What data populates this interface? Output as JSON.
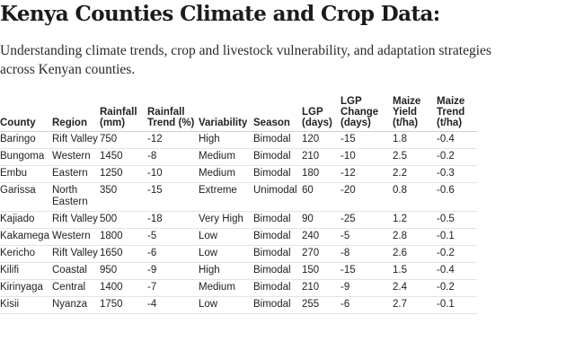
{
  "document": {
    "title": "Kenya Counties Climate and Crop Data:",
    "subtitle": "Understanding climate trends, crop and livestock vulnerability, and adaptation strategies across Kenyan counties."
  },
  "table": {
    "headers": [
      "County",
      "Region",
      "Rainfall (mm)",
      "Rainfall Trend (%)",
      "Variability",
      "Season",
      "LGP (days)",
      "LGP Change (days)",
      "Maize Yield (t/ha)",
      "Maize Trend (t/ha)"
    ],
    "rows": [
      [
        "Baringo",
        "Rift Valley",
        "750",
        "-12",
        "High",
        "Bimodal",
        "120",
        "-15",
        "1.8",
        "-0.4"
      ],
      [
        "Bungoma",
        "Western",
        "1450",
        "-8",
        "Medium",
        "Bimodal",
        "210",
        "-10",
        "2.5",
        "-0.2"
      ],
      [
        "Embu",
        "Eastern",
        "1250",
        "-10",
        "Medium",
        "Bimodal",
        "180",
        "-12",
        "2.2",
        "-0.3"
      ],
      [
        "Garissa",
        "North Eastern",
        "350",
        "-15",
        "Extreme",
        "Unimodal",
        "60",
        "-20",
        "0.8",
        "-0.6"
      ],
      [
        "Kajiado",
        "Rift Valley",
        "500",
        "-18",
        "Very High",
        "Bimodal",
        "90",
        "-25",
        "1.2",
        "-0.5"
      ],
      [
        "Kakamega",
        "Western",
        "1800",
        "-5",
        "Low",
        "Bimodal",
        "240",
        "-5",
        "2.8",
        "-0.1"
      ],
      [
        "Kericho",
        "Rift Valley",
        "1650",
        "-6",
        "Low",
        "Bimodal",
        "270",
        "-8",
        "2.6",
        "-0.2"
      ],
      [
        "Kilifi",
        "Coastal",
        "950",
        "-9",
        "High",
        "Bimodal",
        "150",
        "-15",
        "1.5",
        "-0.4"
      ],
      [
        "Kirinyaga",
        "Central",
        "1400",
        "-7",
        "Medium",
        "Bimodal",
        "210",
        "-9",
        "2.4",
        "-0.2"
      ],
      [
        "Kisii",
        "Nyanza",
        "1750",
        "-4",
        "Low",
        "Bimodal",
        "255",
        "-6",
        "2.7",
        "-0.1"
      ]
    ]
  }
}
